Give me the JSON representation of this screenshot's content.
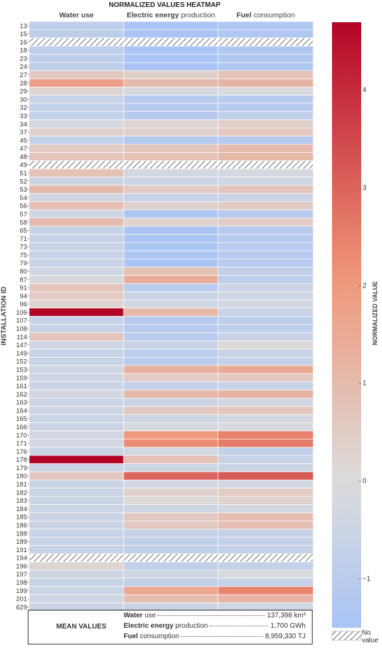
{
  "chart_data": {
    "type": "heatmap",
    "title": "NORMALIZED VALUES HEATMAP",
    "ylabel": "INSTALLATION ID",
    "columns": [
      {
        "bold": "Water use",
        "rest": ""
      },
      {
        "bold": "Electric energy",
        "rest": " production"
      },
      {
        "bold": "Fuel",
        "rest": " consumption"
      }
    ],
    "rows": [
      "13",
      "15",
      "16",
      "18",
      "23",
      "24",
      "27",
      "28",
      "29",
      "30",
      "32",
      "33",
      "34",
      "37",
      "45",
      "47",
      "48",
      "49",
      "51",
      "52",
      "53",
      "54",
      "56",
      "57",
      "58",
      "65",
      "71",
      "73",
      "75",
      "79",
      "80",
      "87",
      "91",
      "94",
      "96",
      "106",
      "107",
      "108",
      "114",
      "147",
      "149",
      "152",
      "153",
      "159",
      "161",
      "162",
      "163",
      "164",
      "165",
      "166",
      "170",
      "171",
      "176",
      "178",
      "179",
      "180",
      "181",
      "182",
      "183",
      "184",
      "185",
      "186",
      "188",
      "189",
      "191",
      "194",
      "196",
      "197",
      "198",
      "199",
      "201",
      "629"
    ],
    "values": [
      [
        -0.9,
        -1.6,
        -1.3
      ],
      [
        -0.9,
        -1.6,
        -1.3
      ],
      [
        null,
        null,
        null
      ],
      [
        -0.9,
        -1.6,
        -1.3
      ],
      [
        -0.9,
        -1.6,
        -1.3
      ],
      [
        -0.9,
        -1.6,
        -1.3
      ],
      [
        0.6,
        0.4,
        0.8
      ],
      [
        1.8,
        1.0,
        1.2
      ],
      [
        0.2,
        -0.2,
        -0.1
      ],
      [
        -0.6,
        -1.1,
        -1.0
      ],
      [
        -0.7,
        -1.1,
        -1.1
      ],
      [
        -0.7,
        -1.1,
        -0.8
      ],
      [
        -0.2,
        0.2,
        0.4
      ],
      [
        0.3,
        0.3,
        0.6
      ],
      [
        -0.7,
        -1.2,
        -1.1
      ],
      [
        0.5,
        0.7,
        1.0
      ],
      [
        0.7,
        0.8,
        1.1
      ],
      [
        null,
        null,
        null
      ],
      [
        0.8,
        -0.3,
        -0.2
      ],
      [
        -0.5,
        -0.5,
        -0.4
      ],
      [
        1.1,
        0.5,
        0.7
      ],
      [
        -0.4,
        -0.6,
        -0.5
      ],
      [
        0.9,
        0.3,
        0.5
      ],
      [
        -0.4,
        -1.4,
        -1.1
      ],
      [
        1.0,
        0.3,
        0.5
      ],
      [
        -0.6,
        -1.4,
        -1.1
      ],
      [
        -0.6,
        -1.4,
        -1.1
      ],
      [
        -0.6,
        -1.4,
        -1.1
      ],
      [
        -0.6,
        -1.4,
        -1.1
      ],
      [
        -0.6,
        -1.5,
        -1.1
      ],
      [
        -0.4,
        0.8,
        -0.8
      ],
      [
        -0.2,
        1.4,
        -0.9
      ],
      [
        0.7,
        -1.0,
        -0.5
      ],
      [
        0.5,
        -0.5,
        -0.4
      ],
      [
        0.2,
        -0.4,
        -0.3
      ],
      [
        4.7,
        1.1,
        -0.6
      ],
      [
        -0.6,
        -1.1,
        -0.9
      ],
      [
        -0.6,
        -1.1,
        -0.9
      ],
      [
        0.7,
        -1.0,
        -0.6
      ],
      [
        -0.4,
        -0.6,
        0.1
      ],
      [
        -0.6,
        -0.9,
        -0.6
      ],
      [
        -0.6,
        -1.0,
        -0.7
      ],
      [
        -0.4,
        1.3,
        1.5
      ],
      [
        -0.4,
        0.5,
        0.6
      ],
      [
        -0.5,
        -0.7,
        -0.6
      ],
      [
        -0.3,
        1.1,
        1.2
      ],
      [
        -0.5,
        -0.5,
        -0.3
      ],
      [
        -0.4,
        0.6,
        0.7
      ],
      [
        -0.5,
        -0.4,
        -0.3
      ],
      [
        -0.5,
        -0.2,
        -0.1
      ],
      [
        -0.3,
        2.0,
        2.5
      ],
      [
        -0.3,
        2.3,
        2.6
      ],
      [
        -0.5,
        -0.3,
        -0.8
      ],
      [
        4.7,
        0.8,
        -0.6
      ],
      [
        -0.5,
        -0.4,
        -0.5
      ],
      [
        0.6,
        3.0,
        3.2
      ],
      [
        -0.5,
        -0.3,
        -0.3
      ],
      [
        -0.5,
        0.3,
        0.5
      ],
      [
        -0.5,
        0.1,
        0.3
      ],
      [
        -0.5,
        -0.4,
        -0.3
      ],
      [
        -0.5,
        0.6,
        0.9
      ],
      [
        -0.5,
        0.6,
        0.9
      ],
      [
        -0.6,
        -0.7,
        -0.6
      ],
      [
        -0.6,
        -0.8,
        -0.7
      ],
      [
        -0.6,
        -0.8,
        -0.7
      ],
      [
        null,
        null,
        null
      ],
      [
        0.2,
        -0.8,
        -0.7
      ],
      [
        -0.4,
        -0.4,
        -0.1
      ],
      [
        -0.6,
        -0.8,
        -0.7
      ],
      [
        -0.5,
        1.6,
        2.4
      ],
      [
        -0.4,
        0.9,
        1.2
      ],
      [
        -0.5,
        -0.5,
        -0.4
      ]
    ],
    "colorscale": {
      "min": -1.5,
      "max": 4.7,
      "ticks": [
        -1,
        0,
        1,
        2,
        3,
        4
      ],
      "label": "NORMALIZED VALUE",
      "low_color": "#a9c4f5",
      "mid_color": "#dcdcdc",
      "high_color": "#b40426"
    },
    "no_value_label": "No value",
    "mean_values": {
      "title": "MEAN VALUES",
      "items": [
        {
          "bold": "Water",
          "rest": " use",
          "value": "137,398 km³"
        },
        {
          "bold": "Electric energy",
          "rest": " production",
          "value": "1,700 GWh"
        },
        {
          "bold": "Fuel",
          "rest": " consumption",
          "value": "8,959,330 TJ"
        }
      ]
    }
  }
}
